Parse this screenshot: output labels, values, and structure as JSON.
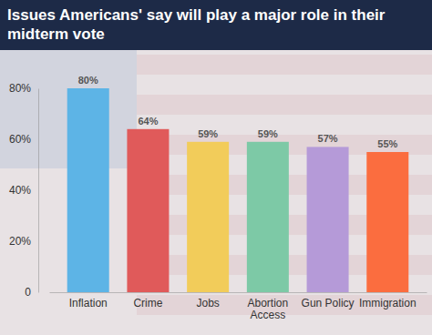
{
  "chart_data": {
    "type": "bar",
    "title": "Issues Americans' say will play a major role in their midterm vote",
    "categories": [
      "Inflation",
      "Crime",
      "Jobs",
      "Abortion Access",
      "Gun Policy",
      "Immigration"
    ],
    "values": [
      80,
      64,
      59,
      59,
      57,
      55
    ],
    "value_labels": [
      "80%",
      "64%",
      "59%",
      "59%",
      "57%",
      "55%"
    ],
    "colors": [
      "#5db4e6",
      "#e05a5a",
      "#f2cc5a",
      "#7dc9a6",
      "#b59ad8",
      "#fb6d3f"
    ],
    "ylim": [
      0,
      80
    ],
    "yticks": [
      0,
      {
        "value": 20,
        "label": "20%"
      },
      {
        "value": 40,
        "label": "40%"
      },
      {
        "value": 60,
        "label": "60%"
      },
      {
        "value": 80,
        "label": "80%"
      }
    ],
    "grid": false,
    "data_labels": true
  }
}
